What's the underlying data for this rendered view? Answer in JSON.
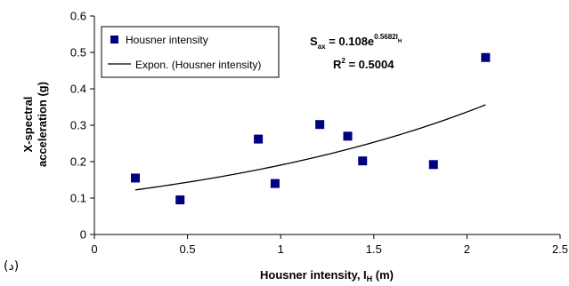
{
  "panel_label": "(د)",
  "chart_data": {
    "type": "scatter",
    "xlabel": "Housner intensity, I",
    "xlabel_sub": "H",
    "xlabel_unit": " (m)",
    "ylabel_line1": "X-spectral",
    "ylabel_line2": "acceleration (g)",
    "xlim": [
      0,
      2.5
    ],
    "ylim": [
      0,
      0.6
    ],
    "xticks": [
      0,
      0.5,
      1,
      1.5,
      2,
      2.5
    ],
    "xtick_labels": [
      "0",
      "0.5",
      "1",
      "1.5",
      "2",
      "2.5"
    ],
    "yticks": [
      0,
      0.1,
      0.2,
      0.3,
      0.4,
      0.5,
      0.6
    ],
    "ytick_labels": [
      "0",
      "0.1",
      "0.2",
      "0.3",
      "0.4",
      "0.5",
      "0.6"
    ],
    "grid": false,
    "legend_position": "top-left",
    "series": [
      {
        "name": "Housner intensity",
        "marker": "square",
        "color": "#000080",
        "x": [
          0.22,
          0.46,
          0.88,
          0.97,
          1.21,
          1.36,
          1.44,
          1.82,
          2.1
        ],
        "y": [
          0.155,
          0.095,
          0.262,
          0.14,
          0.302,
          0.27,
          0.202,
          0.192,
          0.486
        ]
      }
    ],
    "trendline": {
      "name": "Expon. (Housner intensity)",
      "color": "#000000",
      "coef": 0.108,
      "exp": 0.5682,
      "x_range": [
        0.22,
        2.1
      ]
    },
    "equation": {
      "s_label": "S",
      "s_sub": "ax",
      "rhs": " = 0.108e",
      "exp_text": "0.5682I",
      "exp_sub": "H",
      "r2_label": "R",
      "r2_sup": "2",
      "r2_value": " = 0.5004"
    }
  }
}
